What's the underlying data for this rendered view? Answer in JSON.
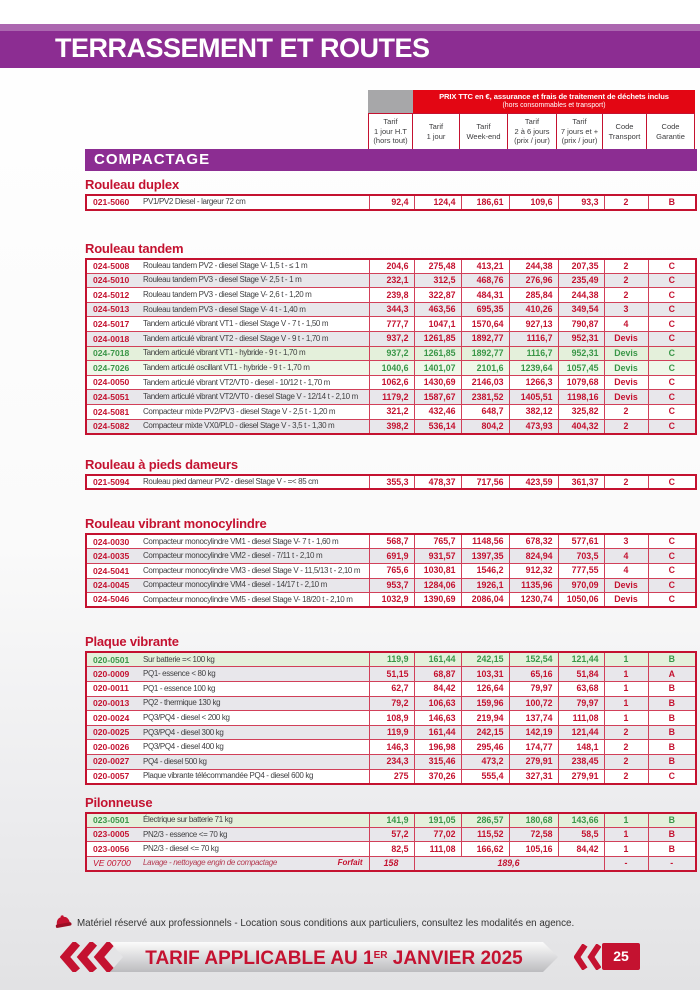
{
  "page": {
    "banner_title": "TERRASSEMENT ET ROUTES",
    "section_banner": "COMPACTAGE",
    "footer_note": "Matériel réservé aux professionnels - Location sous conditions aux particuliers, consultez les modalités en agence.",
    "footer_banner": {
      "prefix": "TARIF APPLICABLE AU 1",
      "sup": "ER",
      "suffix": " JANVIER 2025"
    },
    "page_number": "25"
  },
  "colors": {
    "purple": "#8c2d92",
    "red": "#c41230",
    "banner_red": "#e30613",
    "green": "#3a9648",
    "row_gray": "#e8e7eb",
    "row_green": "#e4f0db"
  },
  "pricing_header": {
    "banner_line1": "PRIX TTC en €, assurance et frais de traitement de déchets inclus",
    "banner_line2": "(hors consommables et transport)",
    "columns": [
      [
        "Tarif",
        "1 jour H.T",
        "(hors tout)"
      ],
      [
        "Tarif",
        "1 jour"
      ],
      [
        "Tarif",
        "Week-end"
      ],
      [
        "Tarif",
        "2 à 6 jours",
        "(prix / jour)"
      ],
      [
        "Tarif",
        "7 jours et +",
        "(prix / jour)"
      ],
      [
        "Code",
        "Transport"
      ],
      [
        "Code",
        "Garantie"
      ]
    ]
  },
  "sections": [
    {
      "title": "Rouleau duplex",
      "rows": [
        {
          "code": "021-5060",
          "desc": "PV1/PV2 Diesel - largeur 72 cm",
          "prices": [
            "92,4",
            "124,4",
            "186,61",
            "109,6",
            "93,3"
          ],
          "transport": "2",
          "garantie": "B",
          "icons": [],
          "variant": "white"
        }
      ]
    },
    {
      "title": "Rouleau tandem",
      "rows": [
        {
          "code": "024-5008",
          "desc": "Rouleau tandem PV2 - diesel Stage V- 1,5 t - ≤ 1 m",
          "prices": [
            "204,6",
            "275,48",
            "413,21",
            "244,38",
            "207,35"
          ],
          "transport": "2",
          "garantie": "C",
          "icons": [],
          "variant": "white"
        },
        {
          "code": "024-5010",
          "desc": "Rouleau tandem PV3 - diesel Stage V- 2,5 t - 1 m",
          "prices": [
            "232,1",
            "312,5",
            "468,76",
            "276,96",
            "235,49"
          ],
          "transport": "2",
          "garantie": "C",
          "icons": [
            "hard-hat"
          ],
          "variant": "gray"
        },
        {
          "code": "024-5012",
          "desc": "Rouleau tandem PV3 - diesel Stage V- 2,6 t - 1,20 m",
          "prices": [
            "239,8",
            "322,87",
            "484,31",
            "285,84",
            "244,38"
          ],
          "transport": "2",
          "garantie": "C",
          "icons": [
            "hard-hat"
          ],
          "variant": "white"
        },
        {
          "code": "024-5013",
          "desc": "Rouleau tandem PV3 - diesel Stage V- 4 t - 1,40 m",
          "prices": [
            "344,3",
            "463,56",
            "695,35",
            "410,26",
            "349,54"
          ],
          "transport": "3",
          "garantie": "C",
          "icons": [
            "hard-hat"
          ],
          "variant": "gray"
        },
        {
          "code": "024-5017",
          "desc": "Tandem articulé vibrant VT1 - diesel Stage V - 7 t - 1,50 m",
          "prices": [
            "777,7",
            "1047,1",
            "1570,64",
            "927,13",
            "790,87"
          ],
          "transport": "4",
          "garantie": "C",
          "icons": [
            "hard-hat"
          ],
          "variant": "white"
        },
        {
          "code": "024-0018",
          "desc": "Tandem articulé vibrant VT2 - diesel Stage V - 9 t - 1,70 m",
          "prices": [
            "937,2",
            "1261,85",
            "1892,77",
            "1116,7",
            "952,31"
          ],
          "transport": "Devis",
          "garantie": "C",
          "icons": [
            "hard-hat"
          ],
          "variant": "gray"
        },
        {
          "code": "024-7018",
          "desc": "Tandem articulé vibrant VT1 - hybride - 9 t - 1,70 m",
          "prices": [
            "937,2",
            "1261,85",
            "1892,77",
            "1116,7",
            "952,31"
          ],
          "transport": "Devis",
          "garantie": "C",
          "icons": [
            "hard-hat",
            "eco-leaf"
          ],
          "variant": "green"
        },
        {
          "code": "024-7026",
          "desc": "Tandem articulé oscillant VT1 - hybride - 9 t - 1,70 m",
          "prices": [
            "1040,6",
            "1401,07",
            "2101,6",
            "1239,64",
            "1057,45"
          ],
          "transport": "Devis",
          "garantie": "C",
          "icons": [
            "hard-hat",
            "eco-leaf"
          ],
          "variant": "green-light"
        },
        {
          "code": "024-0050",
          "desc": "Tandem articulé vibrant VT2/VT0 - diesel - 10/12 t - 1,70 m",
          "prices": [
            "1062,6",
            "1430,69",
            "2146,03",
            "1266,3",
            "1079,68"
          ],
          "transport": "Devis",
          "garantie": "C",
          "icons": [
            "hard-hat"
          ],
          "variant": "white"
        },
        {
          "code": "024-5051",
          "desc": "Tandem articulé vibrant VT2/VT0 - diesel Stage V - 12/14 t - 2,10 m",
          "prices": [
            "1179,2",
            "1587,67",
            "2381,52",
            "1405,51",
            "1198,16"
          ],
          "transport": "Devis",
          "garantie": "C",
          "icons": [
            "hard-hat"
          ],
          "variant": "gray"
        },
        {
          "code": "024-5081",
          "desc": "Compacteur mixte PV2/PV3 - diesel Stage V - 2,5 t - 1,20 m",
          "prices": [
            "321,2",
            "432,46",
            "648,7",
            "382,12",
            "325,82"
          ],
          "transport": "2",
          "garantie": "C",
          "icons": [
            "hard-hat"
          ],
          "variant": "white"
        },
        {
          "code": "024-5082",
          "desc": "Compacteur mixte VX0/PL0 - diesel Stage V - 3,5 t - 1,30 m",
          "prices": [
            "398,2",
            "536,14",
            "804,2",
            "473,93",
            "404,32"
          ],
          "transport": "2",
          "garantie": "C",
          "icons": [
            "hard-hat"
          ],
          "variant": "gray"
        }
      ]
    },
    {
      "title": "Rouleau à pieds dameurs",
      "rows": [
        {
          "code": "021-5094",
          "desc": "Rouleau pied dameur PV2 - diesel Stage V - =< 85 cm",
          "prices": [
            "355,3",
            "478,37",
            "717,56",
            "423,59",
            "361,37"
          ],
          "transport": "2",
          "garantie": "C",
          "icons": [
            "hard-hat"
          ],
          "variant": "white"
        }
      ]
    },
    {
      "title": "Rouleau vibrant monocylindre",
      "rows": [
        {
          "code": "024-0030",
          "desc": "Compacteur monocylindre VM1 - diesel Stage V- 7 t - 1,60 m",
          "prices": [
            "568,7",
            "765,7",
            "1148,56",
            "678,32",
            "577,61"
          ],
          "transport": "3",
          "garantie": "C",
          "icons": [
            "hard-hat"
          ],
          "variant": "white"
        },
        {
          "code": "024-0035",
          "desc": "Compacteur monocylindre VM2 - diesel - 7/11 t - 2,10 m",
          "prices": [
            "691,9",
            "931,57",
            "1397,35",
            "824,94",
            "703,5"
          ],
          "transport": "4",
          "garantie": "C",
          "icons": [
            "hard-hat"
          ],
          "variant": "gray"
        },
        {
          "code": "024-5041",
          "desc": "Compacteur monocylindre VM3 - diesel Stage V - 11,5/13 t - 2,10 m",
          "prices": [
            "765,6",
            "1030,81",
            "1546,2",
            "912,32",
            "777,55"
          ],
          "transport": "4",
          "garantie": "C",
          "icons": [
            "hard-hat"
          ],
          "variant": "white"
        },
        {
          "code": "024-0045",
          "desc": "Compacteur monocylindre VM4 - diesel - 14/17 t - 2,10 m",
          "prices": [
            "953,7",
            "1284,06",
            "1926,1",
            "1135,96",
            "970,09"
          ],
          "transport": "Devis",
          "garantie": "C",
          "icons": [
            "hard-hat"
          ],
          "variant": "gray"
        },
        {
          "code": "024-5046",
          "desc": "Compacteur monocylindre VM5 - diesel Stage V- 18/20 t - 2,10 m",
          "prices": [
            "1032,9",
            "1390,69",
            "2086,04",
            "1230,74",
            "1050,06"
          ],
          "transport": "Devis",
          "garantie": "C",
          "icons": [
            "hard-hat"
          ],
          "variant": "white"
        }
      ]
    },
    {
      "title": "Plaque vibrante",
      "rows": [
        {
          "code": "020-0501",
          "desc": "Sur batterie =< 100 kg",
          "prices": [
            "119,9",
            "161,44",
            "242,15",
            "152,54",
            "121,44"
          ],
          "transport": "1",
          "garantie": "B",
          "icons": [
            "eco-leaf"
          ],
          "variant": "green"
        },
        {
          "code": "020-0009",
          "desc": "PQ1- essence < 80 kg",
          "prices": [
            "51,15",
            "68,87",
            "103,31",
            "65,16",
            "51,84"
          ],
          "transport": "1",
          "garantie": "A",
          "icons": [],
          "variant": "gray"
        },
        {
          "code": "020-0011",
          "desc": "PQ1 - essence 100 kg",
          "prices": [
            "62,7",
            "84,42",
            "126,64",
            "79,97",
            "63,68"
          ],
          "transport": "1",
          "garantie": "B",
          "icons": [],
          "variant": "white"
        },
        {
          "code": "020-0013",
          "desc": "PQ2 - thermique 130 kg",
          "prices": [
            "79,2",
            "106,63",
            "159,96",
            "100,72",
            "79,97"
          ],
          "transport": "1",
          "garantie": "B",
          "icons": [],
          "variant": "gray"
        },
        {
          "code": "020-0024",
          "desc": "PQ3/PQ4 - diesel < 200 kg",
          "prices": [
            "108,9",
            "146,63",
            "219,94",
            "137,74",
            "111,08"
          ],
          "transport": "1",
          "garantie": "B",
          "icons": [],
          "variant": "white"
        },
        {
          "code": "020-0025",
          "desc": "PQ3/PQ4 - diesel 300 kg",
          "prices": [
            "119,9",
            "161,44",
            "242,15",
            "142,19",
            "121,44"
          ],
          "transport": "2",
          "garantie": "B",
          "icons": [
            "hard-hat"
          ],
          "variant": "gray"
        },
        {
          "code": "020-0026",
          "desc": "PQ3/PQ4 - diesel 400 kg",
          "prices": [
            "146,3",
            "196,98",
            "295,46",
            "174,77",
            "148,1"
          ],
          "transport": "2",
          "garantie": "B",
          "icons": [
            "hard-hat"
          ],
          "variant": "white"
        },
        {
          "code": "020-0027",
          "desc": "PQ4 - diesel 500 kg",
          "prices": [
            "234,3",
            "315,46",
            "473,2",
            "279,91",
            "238,45"
          ],
          "transport": "2",
          "garantie": "B",
          "icons": [
            "hard-hat"
          ],
          "variant": "gray"
        },
        {
          "code": "020-0057",
          "desc": "Plaque vibrante télécommandée PQ4 - diesel 600 kg",
          "prices": [
            "275",
            "370,26",
            "555,4",
            "327,31",
            "279,91"
          ],
          "transport": "2",
          "garantie": "C",
          "icons": [
            "hard-hat"
          ],
          "variant": "white"
        }
      ]
    },
    {
      "title": "Pilonneuse",
      "rows": [
        {
          "code": "023-0501",
          "desc": "Électrique sur batterie 71 kg",
          "prices": [
            "141,9",
            "191,05",
            "286,57",
            "180,68",
            "143,66"
          ],
          "transport": "1",
          "garantie": "B",
          "icons": [
            "eco-leaf"
          ],
          "variant": "green"
        },
        {
          "code": "023-0005",
          "desc": "PN2/3 - essence <= 70 kg",
          "prices": [
            "57,2",
            "77,02",
            "115,52",
            "72,58",
            "58,5"
          ],
          "transport": "1",
          "garantie": "B",
          "icons": [],
          "variant": "gray"
        },
        {
          "code": "023-0056",
          "desc": "PN2/3 - diesel <= 70 kg",
          "prices": [
            "82,5",
            "111,08",
            "166,62",
            "105,16",
            "84,42"
          ],
          "transport": "1",
          "garantie": "B",
          "icons": [],
          "variant": "white"
        },
        {
          "code": "VE 00700",
          "desc": "Lavage - nettoyage engin de compactage",
          "type": "forfait",
          "forfait_label": "Forfait",
          "price_hors": "158",
          "price_span": "189,6",
          "transport": "-",
          "garantie": "-",
          "icons": [],
          "variant": "ve"
        }
      ]
    }
  ]
}
